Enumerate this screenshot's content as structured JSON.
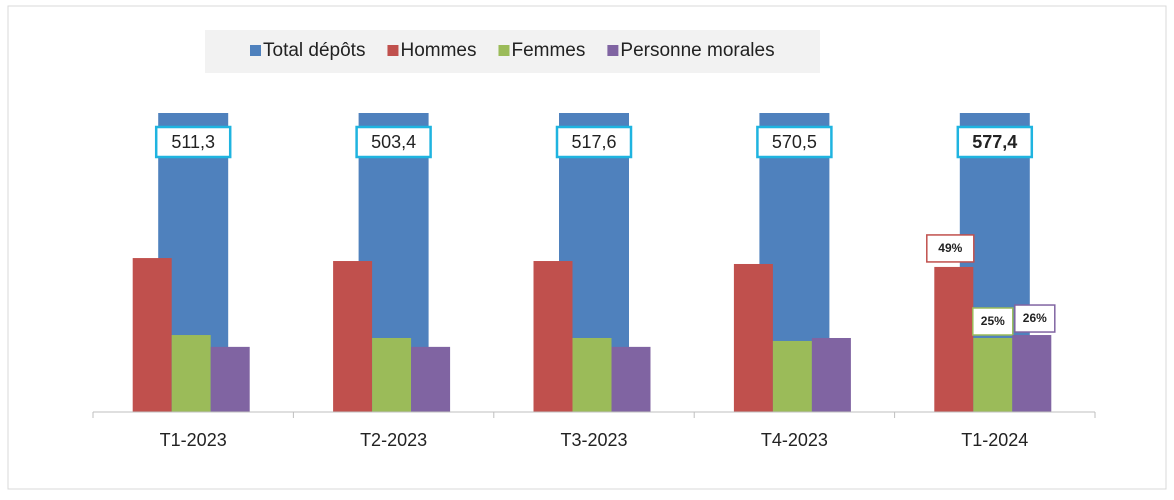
{
  "chart_data": {
    "type": "bar",
    "categories": [
      "T1-2023",
      "T2-2023",
      "T3-2023",
      "T4-2023",
      "T1-2024"
    ],
    "series": [
      {
        "name": "Total dépôts",
        "color": "#4f81bd",
        "axis": "y2",
        "values": [
          511.3,
          503.4,
          517.6,
          570.5,
          577.4
        ],
        "value_labels": [
          "511,3",
          "503,4",
          "517,6",
          "570,5",
          "577,4"
        ]
      },
      {
        "name": "Hommes",
        "color": "#c0504d",
        "values": [
          52,
          51,
          51,
          50,
          49
        ],
        "value_labels": [
          null,
          null,
          null,
          null,
          "49%"
        ]
      },
      {
        "name": "Femmes",
        "color": "#9bbb59",
        "values": [
          26,
          25,
          25,
          24,
          25
        ],
        "value_labels": [
          null,
          null,
          null,
          null,
          "25%"
        ]
      },
      {
        "name": "Personne morales",
        "color": "#8064a2",
        "values": [
          22,
          22,
          22,
          25,
          26
        ],
        "value_labels": [
          null,
          null,
          null,
          null,
          "26%"
        ]
      }
    ],
    "ylim": [
      0,
      101
    ],
    "y2lim": [
      0,
      500
    ],
    "legend": "top"
  }
}
